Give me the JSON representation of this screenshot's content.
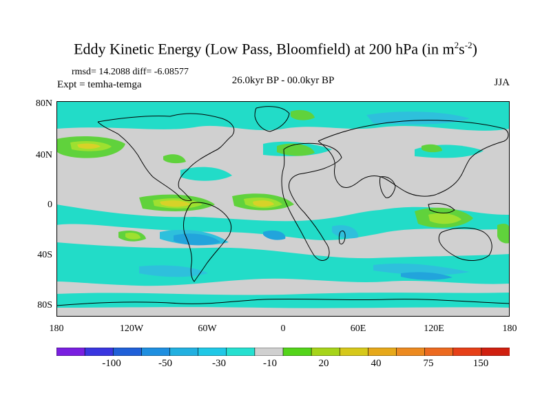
{
  "title": {
    "main": "Eddy Kinetic Energy (Low Pass, Bloomfield) at 200 hPa (in m",
    "exp1": "2",
    "mid": "s",
    "exp2": "-2",
    "close": ")"
  },
  "stats": "rmsd= 14.2088 diff= -6.08577",
  "expt": "Expt = temha-temga",
  "period": "26.0kyr BP - 00.0kyr BP",
  "season": "JJA",
  "lat_labels": [
    "80N",
    "40N",
    "0",
    "40S",
    "80S"
  ],
  "lon_labels": [
    "180",
    "120W",
    "60W",
    "0",
    "60E",
    "120E",
    "180"
  ],
  "colorbar": {
    "labels": [
      "-100",
      "-50",
      "-30",
      "-10",
      "20",
      "40",
      "75",
      "150"
    ],
    "colors": [
      "#7a1fe0",
      "#3a36e0",
      "#2060d8",
      "#1f8fe0",
      "#22b0e0",
      "#20c8e6",
      "#26e0d0",
      "#d0d0d0",
      "#54d41a",
      "#a6d41a",
      "#d6c81a",
      "#e6a81a",
      "#ec8a20",
      "#ec6a20",
      "#e64018",
      "#d02010"
    ]
  },
  "field": {
    "land_color": "#000000",
    "neutral_color": "#d0d0d0",
    "colors": {
      "green": "#60d23c",
      "ygreen": "#9ee030",
      "yellow": "#d8d228",
      "cyan": "#22dcc8",
      "lblue": "#2ec0dc",
      "blue": "#22a4dc"
    }
  }
}
